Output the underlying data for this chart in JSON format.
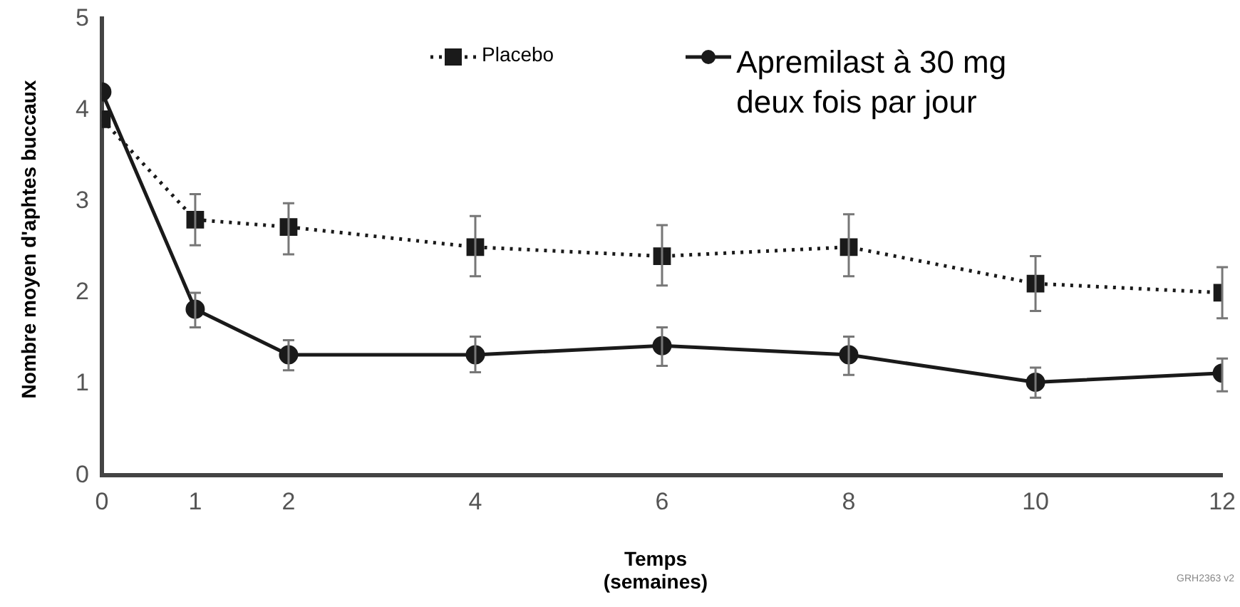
{
  "chart_data": {
    "type": "line",
    "xlabel": "Temps (semaines)",
    "ylabel": "Nombre moyen d'aphtes buccaux",
    "x": [
      0,
      1,
      2,
      4,
      6,
      8,
      10,
      12
    ],
    "series": [
      {
        "name": "Placebo",
        "color": "#1a1a1a",
        "marker": "square",
        "line_style": "dotted",
        "values": [
          3.9,
          2.8,
          2.72,
          2.5,
          2.4,
          2.5,
          2.1,
          2.0
        ],
        "errors": [
          null,
          [
            2.52,
            3.08
          ],
          [
            2.42,
            2.98
          ],
          [
            2.18,
            2.84
          ],
          [
            2.08,
            2.74
          ],
          [
            2.18,
            2.86
          ],
          [
            1.8,
            2.4
          ],
          [
            1.72,
            2.28
          ]
        ]
      },
      {
        "name": "Apremilast à 30 mg deux fois par jour",
        "color": "#1a1a1a",
        "marker": "circle",
        "line_style": "solid",
        "values": [
          4.2,
          1.82,
          1.32,
          1.32,
          1.42,
          1.32,
          1.02,
          1.12
        ],
        "errors": [
          null,
          [
            1.62,
            2.0
          ],
          [
            1.15,
            1.48
          ],
          [
            1.13,
            1.52
          ],
          [
            1.2,
            1.62
          ],
          [
            1.1,
            1.52
          ],
          [
            0.85,
            1.18
          ],
          [
            0.92,
            1.28
          ]
        ]
      }
    ],
    "xlim": [
      0,
      12
    ],
    "xticks": [
      0,
      1,
      2,
      4,
      6,
      8,
      10,
      12
    ],
    "ylim": [
      0,
      5
    ],
    "yticks": [
      0,
      1,
      2,
      3,
      4,
      5
    ],
    "grid": false,
    "legend": "top",
    "annotations": [
      "GRH2363 v2"
    ]
  }
}
